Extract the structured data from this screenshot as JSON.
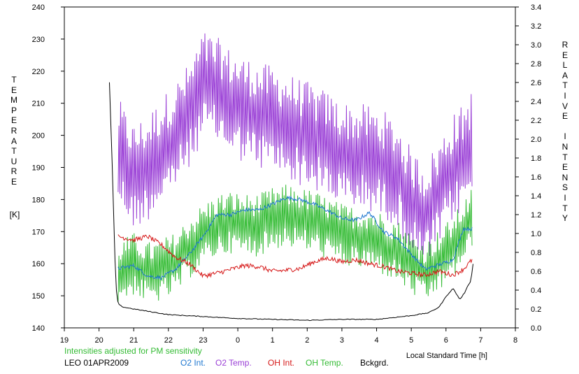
{
  "chart_data": {
    "type": "line",
    "xlabel": "Local Standard Time [h]",
    "ylabel_left": "TEMPERATURE",
    "ylabel_left_unit": "[K]",
    "ylabel_right": "RELATIVE INTENSITY",
    "xlim": [
      19,
      32
    ],
    "x_ticks": [
      19,
      20,
      21,
      22,
      23,
      24,
      25,
      26,
      27,
      28,
      29,
      30,
      31,
      32
    ],
    "x_tick_labels": [
      "19",
      "20",
      "21",
      "22",
      "23",
      "0",
      "1",
      "2",
      "3",
      "4",
      "5",
      "6",
      "7",
      "8"
    ],
    "ylim_left": [
      140,
      240
    ],
    "y_ticks_left": [
      140,
      150,
      160,
      170,
      180,
      190,
      200,
      210,
      220,
      230,
      240
    ],
    "ylim_right": [
      0.0,
      3.4
    ],
    "y_ticks_right": [
      "0.0",
      "0.2",
      "0.4",
      "0.6",
      "0.8",
      "1.0",
      "1.2",
      "1.4",
      "1.6",
      "1.8",
      "2.0",
      "2.2",
      "2.4",
      "2.6",
      "2.8",
      "3.0",
      "3.2",
      "3.4"
    ],
    "grid": false,
    "legend_placement": "bottom",
    "note": "Intensities adjusted for PM sensitivity",
    "station": "LEO 01APR2009",
    "series": [
      {
        "name": "O2 Int.",
        "axis": "right",
        "color": "#1f77d0",
        "x": [
          20.55,
          21.0,
          21.4,
          21.8,
          22.2,
          22.6,
          23.0,
          23.4,
          23.8,
          24.2,
          24.6,
          25.0,
          25.4,
          25.8,
          26.2,
          26.6,
          27.0,
          27.4,
          27.8,
          28.2,
          28.6,
          29.0,
          29.4,
          29.8,
          30.2,
          30.5,
          30.75
        ],
        "y": [
          0.63,
          0.66,
          0.55,
          0.53,
          0.62,
          0.78,
          0.97,
          1.2,
          1.2,
          1.25,
          1.25,
          1.31,
          1.38,
          1.36,
          1.31,
          1.24,
          1.16,
          1.14,
          1.22,
          1.02,
          0.95,
          0.78,
          0.62,
          0.67,
          0.72,
          1.05,
          1.05
        ],
        "noise": 0.02
      },
      {
        "name": "O2 Temp.",
        "axis": "left",
        "color": "#9a3fd6",
        "x": [
          20.55,
          21.0,
          21.4,
          21.8,
          22.2,
          22.6,
          23.0,
          23.4,
          23.8,
          24.2,
          24.6,
          25.0,
          25.4,
          25.8,
          26.2,
          26.6,
          27.0,
          27.4,
          27.8,
          28.2,
          28.6,
          29.0,
          29.4,
          29.8,
          30.2,
          30.5,
          30.75
        ],
        "y": [
          195,
          187,
          190,
          195,
          200,
          206,
          216,
          214,
          210,
          208,
          206,
          205,
          203,
          201,
          199,
          197,
          194,
          193,
          193,
          191,
          188,
          179,
          175,
          182,
          190,
          193,
          198
        ],
        "noise": 12
      },
      {
        "name": "OH Int.",
        "axis": "right",
        "color": "#d61818",
        "x": [
          20.55,
          21.0,
          21.4,
          21.8,
          22.2,
          22.6,
          23.0,
          23.4,
          23.8,
          24.2,
          24.6,
          25.0,
          25.4,
          25.8,
          26.2,
          26.6,
          27.0,
          27.4,
          27.8,
          28.2,
          28.6,
          29.0,
          29.4,
          29.8,
          30.2,
          30.5,
          30.75
        ],
        "y": [
          0.97,
          0.93,
          0.97,
          0.88,
          0.75,
          0.68,
          0.55,
          0.58,
          0.62,
          0.66,
          0.65,
          0.6,
          0.61,
          0.63,
          0.7,
          0.74,
          0.7,
          0.72,
          0.68,
          0.65,
          0.6,
          0.58,
          0.56,
          0.6,
          0.56,
          0.62,
          0.72
        ],
        "noise": 0.025
      },
      {
        "name": "OH Temp.",
        "axis": "left",
        "color": "#33bb33",
        "x": [
          20.55,
          21.0,
          21.4,
          21.8,
          22.2,
          22.6,
          23.0,
          23.4,
          23.8,
          24.2,
          24.6,
          25.0,
          25.4,
          25.8,
          26.2,
          26.6,
          27.0,
          27.4,
          27.8,
          28.2,
          28.6,
          29.0,
          29.4,
          29.8,
          30.2,
          30.5,
          30.75
        ],
        "y": [
          157,
          160,
          157,
          158,
          160,
          165,
          169,
          172,
          173,
          172,
          172,
          174,
          175,
          174,
          173,
          171,
          169,
          168,
          168,
          166,
          164,
          160,
          157,
          161,
          165,
          170,
          174
        ],
        "noise": 7
      },
      {
        "name": "Bckgrd.",
        "axis": "right",
        "color": "#000000",
        "x": [
          20.3,
          20.4,
          20.45,
          20.5,
          20.55,
          20.7,
          21.0,
          21.5,
          22.0,
          23.0,
          24.0,
          25.0,
          26.0,
          27.0,
          28.0,
          29.0,
          29.5,
          29.8,
          30.0,
          30.2,
          30.4,
          30.55,
          30.65,
          30.72,
          30.78
        ],
        "y": [
          2.6,
          1.5,
          0.8,
          0.4,
          0.25,
          0.22,
          0.2,
          0.17,
          0.14,
          0.12,
          0.1,
          0.09,
          0.08,
          0.09,
          0.09,
          0.13,
          0.16,
          0.22,
          0.33,
          0.42,
          0.3,
          0.38,
          0.46,
          0.5,
          0.68
        ],
        "noise": 0.004
      }
    ]
  }
}
